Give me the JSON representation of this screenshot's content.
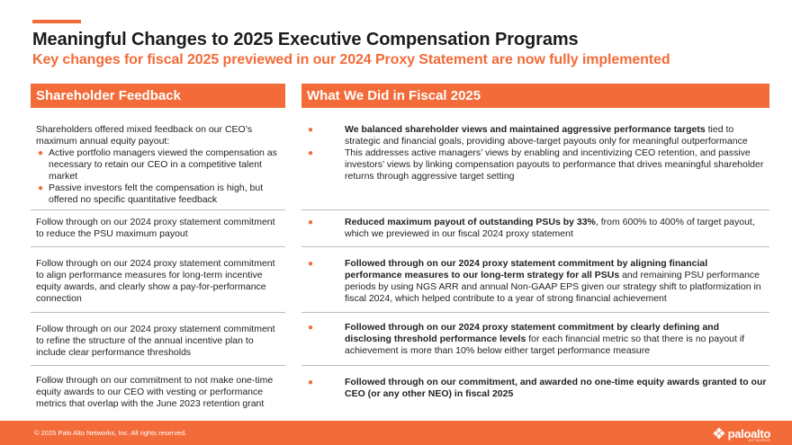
{
  "title": "Meaningful Changes to 2025 Executive Compensation Programs",
  "subtitle": "Key changes for fiscal 2025 previewed in our 2024 Proxy Statement are now fully implemented",
  "headers": {
    "left": "Shareholder Feedback",
    "right": "What We Did in Fiscal 2025"
  },
  "rows": [
    {
      "left_intro": "Shareholders offered mixed feedback on our CEO’s maximum annual equity payout:",
      "left_bullets": [
        "Active portfolio managers viewed the compensation as necessary to retain our CEO in a competitive talent market",
        "Passive investors felt the compensation is high, but offered no specific quantitative feedback"
      ],
      "right_bullets": [
        {
          "bold": "We balanced shareholder views and maintained aggressive performance targets",
          "text": " tied to strategic and financial goals, providing above-target payouts only for meaningful outperformance"
        },
        {
          "bold": "",
          "text": "This addresses active managers’ views by enabling and incentivizing CEO retention, and passive investors’ views by linking compensation payouts to performance that drives meaningful shareholder returns through aggressive target setting"
        }
      ]
    },
    {
      "left": "Follow through on our 2024 proxy statement commitment to reduce the PSU maximum payout",
      "right_bold": "Reduced maximum payout of outstanding PSUs by 33%",
      "right_text": ", from 600% to 400% of target payout, which we previewed in our fiscal 2024 proxy statement"
    },
    {
      "left": "Follow through on our 2024 proxy statement commitment to align performance measures for long-term incentive equity awards, and clearly show a pay-for-performance connection",
      "right_bold": "Followed through on our 2024 proxy statement commitment by aligning financial performance measures to our long-term strategy for all PSUs",
      "right_text": " and remaining PSU performance periods by using NGS ARR and annual Non-GAAP EPS given our strategy shift to platformization in fiscal 2024, which helped contribute to a year of strong financial achievement"
    },
    {
      "left": "Follow through on our 2024 proxy statement commitment to refine the structure of the annual incentive plan to include clear performance thresholds",
      "right_bold": "Followed through on our 2024 proxy statement commitment by clearly defining and disclosing threshold performance levels",
      "right_text": " for each financial metric so that there is no payout if achievement is more than 10% below either target performance measure"
    },
    {
      "left": "Follow through on our commitment to not make one-time equity awards to our CEO with vesting or performance metrics that overlap with the June 2023 retention grant",
      "right_bold": "Followed through on our commitment, and awarded no one-time equity awards granted to our CEO (or any other NEO) in fiscal 2025",
      "right_text": ""
    }
  ],
  "bullet_char": "●",
  "footer": {
    "copyright": "© 2025 Palo Alto Networks, Inc. All rights reserved.",
    "logo_text": "paloalto",
    "logo_sub": "NETWORKS"
  },
  "colors": {
    "accent": "#f26b38",
    "text": "#222222"
  }
}
